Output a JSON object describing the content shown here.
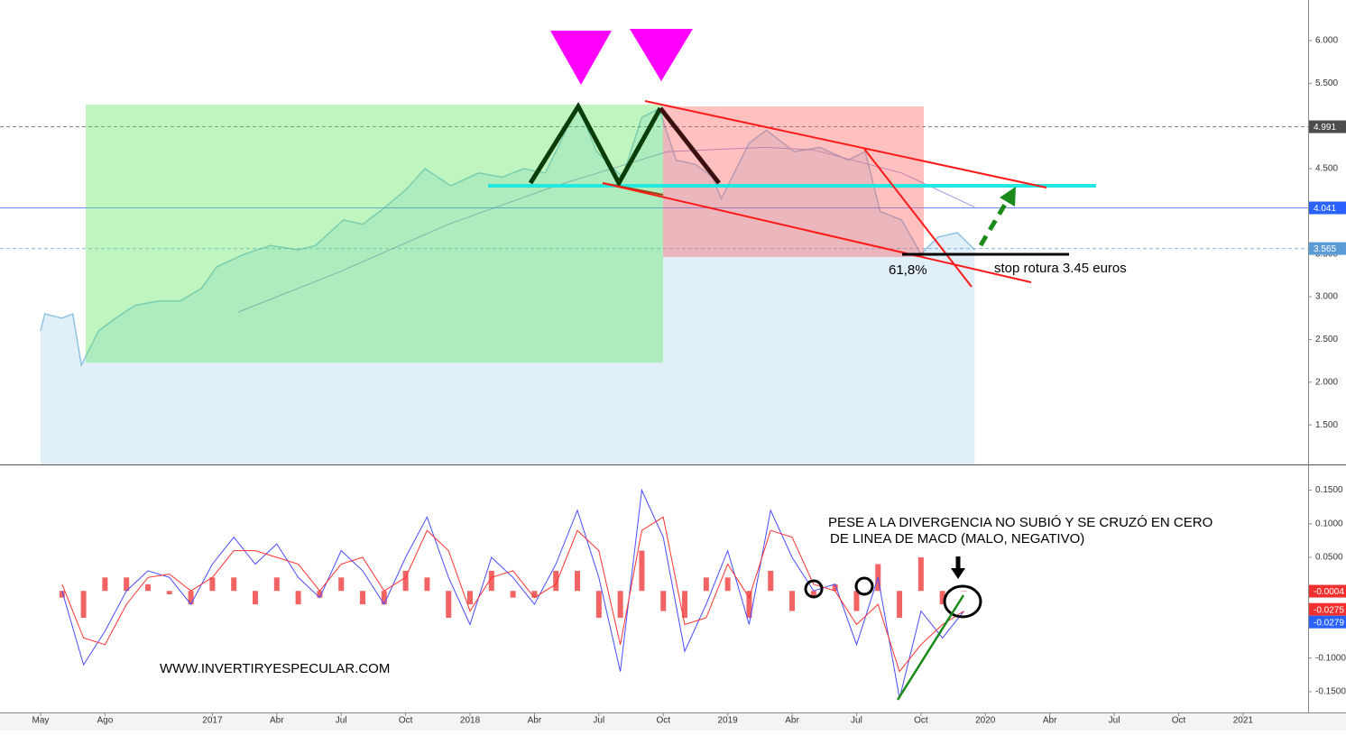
{
  "chart_data": [
    {
      "type": "line",
      "xlim": [
        -1.89,
        59.03
      ],
      "ylim": [
        1.037,
        6.475
      ],
      "yticks": [
        {
          "value": 6,
          "label": "6.000"
        },
        {
          "value": 5.5,
          "label": "5.500"
        },
        {
          "value": 5,
          "label": "5.000"
        },
        {
          "value": 4.5,
          "label": "4.500"
        },
        {
          "value": 4,
          "label": "4.000"
        },
        {
          "value": 3.5,
          "label": "3.500"
        },
        {
          "value": 3,
          "label": "3.000"
        },
        {
          "value": 2.5,
          "label": "2.500"
        },
        {
          "value": 2,
          "label": "2.000"
        },
        {
          "value": 1.5,
          "label": "1.500"
        }
      ],
      "series": [
        {
          "color": "#8fc1e3",
          "area": "#e1f0f8",
          "x": [
            0,
            0.2,
            1.0,
            1.5,
            1.9,
            2.7,
            3.5,
            4.4,
            5.5,
            6.5,
            7.5,
            8.2,
            9.5,
            10.7,
            12.0,
            12.8,
            14.1,
            15.0,
            15.8,
            17.0,
            17.9,
            19.1,
            20.4,
            21.5,
            22.5,
            23.5,
            24.2,
            25.0,
            25.9,
            27.1,
            28.0,
            28.8,
            29.6,
            30.5,
            31.3,
            31.7,
            33.0,
            33.8,
            35.1,
            36.3,
            37.6,
            38.4,
            39.1,
            40.1,
            41.0,
            41.8,
            42.7,
            43.5
          ],
          "values": [
            2.6,
            2.8,
            2.75,
            2.8,
            2.2,
            2.6,
            2.75,
            2.9,
            2.95,
            2.95,
            3.1,
            3.35,
            3.5,
            3.6,
            3.55,
            3.6,
            3.9,
            3.85,
            4.0,
            4.25,
            4.5,
            4.3,
            4.45,
            4.4,
            4.5,
            4.45,
            4.8,
            5.25,
            4.7,
            4.4,
            5.1,
            5.2,
            4.6,
            4.55,
            4.4,
            4.15,
            4.8,
            4.95,
            4.7,
            4.75,
            4.6,
            4.7,
            4.0,
            3.9,
            3.5,
            3.7,
            3.75,
            3.55
          ]
        },
        {
          "color": "#9a9ae0",
          "x": [
            9.2,
            14.0,
            19.0,
            24.0,
            29.2,
            33.8,
            36.0,
            40.1,
            43.5
          ],
          "values": [
            2.82,
            3.3,
            3.85,
            4.3,
            4.7,
            4.75,
            4.72,
            4.45,
            4.05
          ]
        }
      ],
      "price_lines": [
        {
          "value": 4.991,
          "color": "#4d4d4d",
          "dash": true
        },
        {
          "value": 4.041,
          "color": "#2962ff",
          "dash": false
        },
        {
          "value": 3.565,
          "color": "#5b9bd5",
          "dash": true
        }
      ],
      "annotations": [
        "61,8%",
        "stop rotura 3.45 euros"
      ]
    },
    {
      "type": "macd",
      "xlim": [
        -1.89,
        59.03
      ],
      "ylim": [
        -0.181,
        0.187
      ],
      "yticks": [
        {
          "value": 0.15,
          "label": "0.1500"
        },
        {
          "value": 0.1,
          "label": "0.1000"
        },
        {
          "value": 0.05,
          "label": "0.0500"
        },
        {
          "value": -0.1,
          "label": "-0.1000"
        },
        {
          "value": -0.15,
          "label": "-0.1500"
        }
      ],
      "xticks": [
        {
          "value": 0,
          "label": "May"
        },
        {
          "value": 3,
          "label": "Ago"
        },
        {
          "value": 8,
          "label": "2017"
        },
        {
          "value": 11,
          "label": "Abr"
        },
        {
          "value": 14,
          "label": "Jul"
        },
        {
          "value": 17,
          "label": "Oct"
        },
        {
          "value": 20,
          "label": "2018"
        },
        {
          "value": 23,
          "label": "Abr"
        },
        {
          "value": 26,
          "label": "Jul"
        },
        {
          "value": 29,
          "label": "Oct"
        },
        {
          "value": 32,
          "label": "2019"
        },
        {
          "value": 35,
          "label": "Abr"
        },
        {
          "value": 38,
          "label": "Jul"
        },
        {
          "value": 41,
          "label": "Oct"
        },
        {
          "value": 44,
          "label": "2020"
        },
        {
          "value": 47,
          "label": "Abr"
        },
        {
          "value": 50,
          "label": "Jul"
        },
        {
          "value": 53,
          "label": "Oct"
        },
        {
          "value": 56,
          "label": "2021"
        }
      ],
      "x": [
        1,
        2,
        3,
        4,
        5,
        6,
        7,
        8,
        9,
        10,
        11,
        12,
        13,
        14,
        15,
        16,
        17,
        18,
        19,
        20,
        21,
        22,
        23,
        24,
        25,
        26,
        27,
        28,
        29,
        30,
        31,
        32,
        33,
        34,
        35,
        36,
        37,
        38,
        39,
        40,
        41,
        42,
        43
      ],
      "series": [
        {
          "color": "#4a4aff",
          "values": [
            0.0,
            -0.11,
            -0.06,
            0.0,
            0.03,
            0.02,
            -0.02,
            0.04,
            0.08,
            0.04,
            0.07,
            0.02,
            -0.01,
            0.06,
            0.03,
            -0.02,
            0.05,
            0.11,
            0.02,
            -0.05,
            0.05,
            0.02,
            -0.02,
            0.04,
            0.12,
            0.02,
            -0.12,
            0.15,
            0.08,
            -0.09,
            -0.02,
            0.06,
            -0.05,
            0.12,
            0.05,
            0.0,
            0.01,
            -0.08,
            0.02,
            -0.16,
            -0.03,
            -0.07,
            -0.03
          ]
        },
        {
          "color": "#ff3030",
          "values": [
            0.01,
            -0.07,
            -0.08,
            -0.02,
            0.02,
            0.025,
            0.0,
            0.02,
            0.06,
            0.06,
            0.05,
            0.04,
            0.0,
            0.04,
            0.05,
            0.0,
            0.02,
            0.09,
            0.06,
            -0.03,
            0.02,
            0.03,
            -0.01,
            0.01,
            0.09,
            0.06,
            -0.08,
            0.09,
            0.11,
            -0.05,
            -0.04,
            0.04,
            -0.01,
            0.09,
            0.08,
            0.01,
            0.0,
            -0.05,
            -0.02,
            -0.12,
            -0.08,
            -0.05,
            -0.03
          ]
        }
      ],
      "histogram": {
        "color": "#f04848",
        "values": [
          -0.01,
          -0.04,
          0.02,
          0.02,
          0.01,
          -0.005,
          -0.02,
          0.02,
          0.02,
          -0.02,
          0.02,
          -0.02,
          -0.01,
          0.02,
          -0.02,
          -0.02,
          0.03,
          0.02,
          -0.04,
          -0.02,
          0.03,
          -0.01,
          -0.01,
          0.03,
          0.03,
          -0.04,
          -0.04,
          0.06,
          -0.03,
          -0.04,
          0.02,
          0.02,
          -0.04,
          0.03,
          -0.03,
          -0.01,
          0.01,
          -0.03,
          0.04,
          -0.04,
          0.05,
          -0.02,
          0.0
        ]
      },
      "price_lines": [
        {
          "value": -0.0004,
          "color": "#f23030"
        },
        {
          "value": -0.0275,
          "color": "#f23030"
        },
        {
          "value": -0.0279,
          "color": "#2962ff"
        }
      ],
      "annotations": [
        "PESE A LA DIVERGENCIA NO SUBIÓ Y SE CRUZÓ EN CERO",
        "DE LINEA DE MACD (MALO, NEGATIVO)"
      ],
      "watermark": "WWW.INVERTIRYESPECULAR.COM"
    }
  ]
}
